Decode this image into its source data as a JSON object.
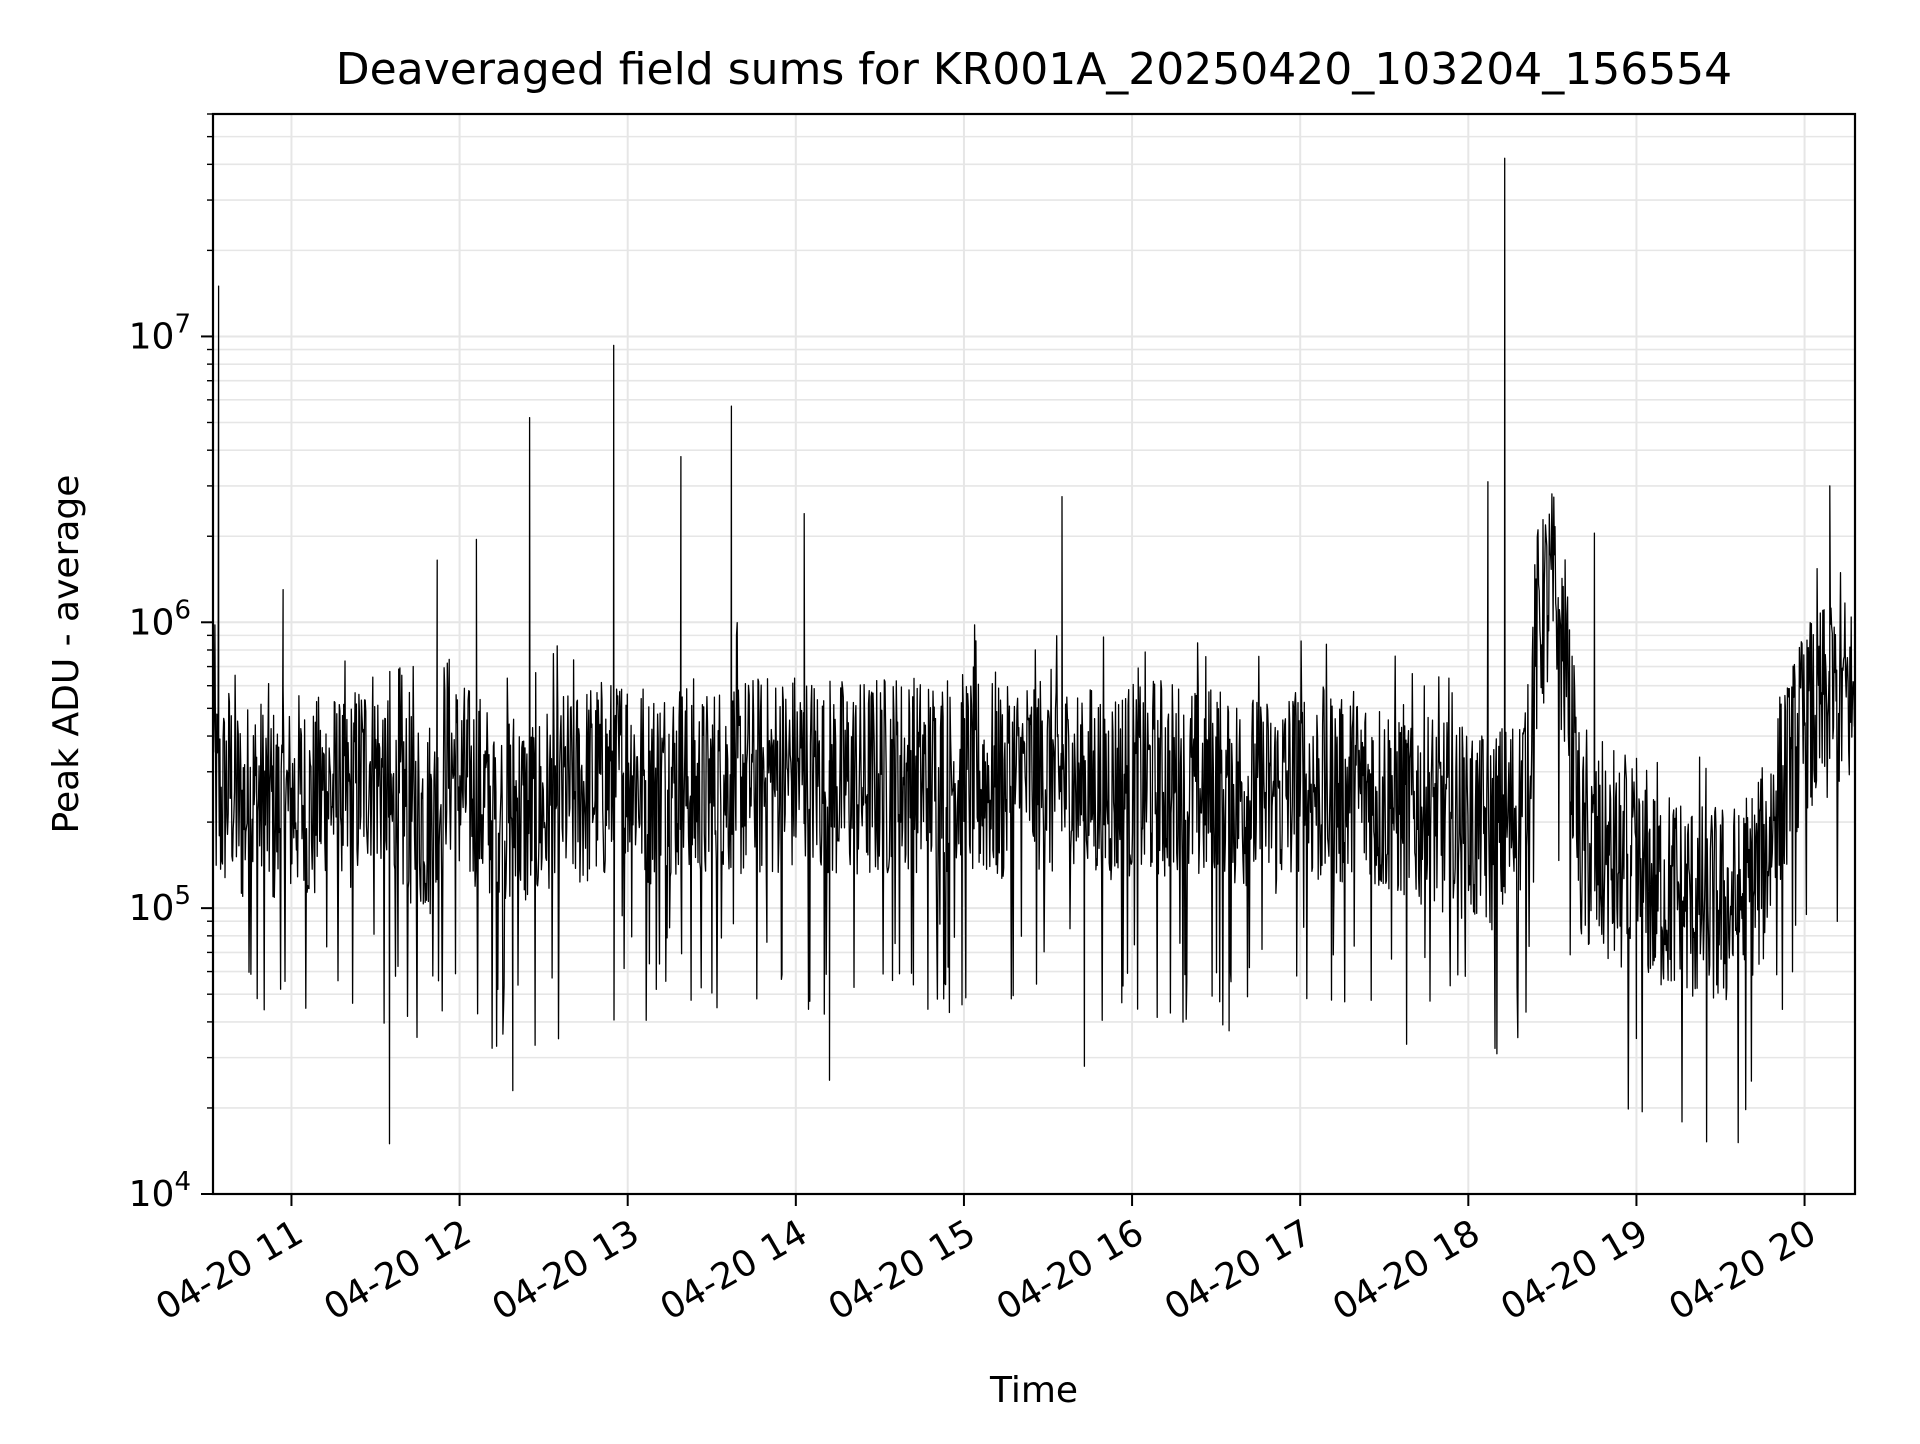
{
  "chart_data": {
    "type": "line",
    "title": "Deaveraged field sums for KR001A_20250420_103204_156554",
    "xlabel": "Time",
    "ylabel": "Peak ADU - average",
    "x_scale": "time",
    "y_scale": "log",
    "xlim": [
      "2025-04-20T10:32:00",
      "2025-04-20T20:18:00"
    ],
    "ylim": [
      10000,
      60000000
    ],
    "x_ticks": [
      {
        "t": "2025-04-20T11:00:00",
        "label": "04-20 11"
      },
      {
        "t": "2025-04-20T12:00:00",
        "label": "04-20 12"
      },
      {
        "t": "2025-04-20T13:00:00",
        "label": "04-20 13"
      },
      {
        "t": "2025-04-20T14:00:00",
        "label": "04-20 14"
      },
      {
        "t": "2025-04-20T15:00:00",
        "label": "04-20 15"
      },
      {
        "t": "2025-04-20T16:00:00",
        "label": "04-20 16"
      },
      {
        "t": "2025-04-20T17:00:00",
        "label": "04-20 17"
      },
      {
        "t": "2025-04-20T18:00:00",
        "label": "04-20 18"
      },
      {
        "t": "2025-04-20T19:00:00",
        "label": "04-20 19"
      },
      {
        "t": "2025-04-20T20:00:00",
        "label": "04-20 20"
      }
    ],
    "y_ticks": [
      {
        "value": 10000,
        "base": "10",
        "exp": "4"
      },
      {
        "value": 100000,
        "base": "10",
        "exp": "5"
      },
      {
        "value": 1000000,
        "base": "10",
        "exp": "6"
      },
      {
        "value": 10000000,
        "base": "10",
        "exp": "7"
      }
    ],
    "grid": true,
    "line_color": "#000000",
    "grid_color": "#e6e6e6",
    "series": [
      {
        "x": [
          "2025-04-20T10:32:00",
          "2025-04-20T10:33:00",
          "2025-04-20T10:35:00",
          "2025-04-20T10:38:00",
          "2025-04-20T10:42:00",
          "2025-04-20T10:47:00",
          "2025-04-20T10:52:00",
          "2025-04-20T10:57:00",
          "2025-04-20T11:02:00",
          "2025-04-20T11:07:00",
          "2025-04-20T11:13:00",
          "2025-04-20T11:20:00",
          "2025-04-20T11:28:00",
          "2025-04-20T11:34:00",
          "2025-04-20T11:36:00",
          "2025-04-20T11:40:00",
          "2025-04-20T11:45:00",
          "2025-04-20T11:52:00",
          "2025-04-20T11:55:00",
          "2025-04-20T12:00:00",
          "2025-04-20T12:06:00",
          "2025-04-20T12:12:00",
          "2025-04-20T12:18:00",
          "2025-04-20T12:24:00",
          "2025-04-20T12:30:00",
          "2025-04-20T12:38:00",
          "2025-04-20T12:46:00",
          "2025-04-20T12:55:00",
          "2025-04-20T13:00:00",
          "2025-04-20T13:08:00",
          "2025-04-20T13:19:00",
          "2025-04-20T13:26:00",
          "2025-04-20T13:37:00",
          "2025-04-20T13:45:00",
          "2025-04-20T13:55:00",
          "2025-04-20T14:03:00",
          "2025-04-20T14:12:00",
          "2025-04-20T14:22:00",
          "2025-04-20T14:35:00",
          "2025-04-20T14:45:00",
          "2025-04-20T14:55:00",
          "2025-04-20T15:05:00",
          "2025-04-20T15:15:00",
          "2025-04-20T15:25:00",
          "2025-04-20T15:35:00",
          "2025-04-20T15:42:00",
          "2025-04-20T15:50:00",
          "2025-04-20T16:00:00",
          "2025-04-20T16:10:00",
          "2025-04-20T16:20:00",
          "2025-04-20T16:30:00",
          "2025-04-20T16:40:00",
          "2025-04-20T16:50:00",
          "2025-04-20T17:00:00",
          "2025-04-20T17:10:00",
          "2025-04-20T17:20:00",
          "2025-04-20T17:30:00",
          "2025-04-20T17:40:00",
          "2025-04-20T17:50:00",
          "2025-04-20T18:00:00",
          "2025-04-20T18:08:00",
          "2025-04-20T18:15:00",
          "2025-04-20T18:20:00",
          "2025-04-20T18:25:00",
          "2025-04-20T18:30:00",
          "2025-04-20T18:35:00",
          "2025-04-20T18:40:00",
          "2025-04-20T18:45:00",
          "2025-04-20T18:55:00",
          "2025-04-20T19:05:00",
          "2025-04-20T19:15:00",
          "2025-04-20T19:25:00",
          "2025-04-20T19:35:00",
          "2025-04-20T19:42:00",
          "2025-04-20T19:46:00",
          "2025-04-20T19:50:00",
          "2025-04-20T19:55:00",
          "2025-04-20T20:00:00",
          "2025-04-20T20:05:00",
          "2025-04-20T20:10:00",
          "2025-04-20T20:15:00",
          "2025-04-20T20:18:00"
        ],
        "y": [
          600000,
          250000,
          230000,
          280000,
          220000,
          240000,
          230000,
          210000,
          250000,
          220000,
          260000,
          230000,
          330000,
          270000,
          200000,
          230000,
          220000,
          200000,
          360000,
          270000,
          250000,
          220000,
          230000,
          210000,
          220000,
          250000,
          270000,
          280000,
          310000,
          260000,
          280000,
          240000,
          290000,
          280000,
          290000,
          300000,
          280000,
          270000,
          290000,
          280000,
          290000,
          280000,
          270000,
          290000,
          280000,
          260000,
          270000,
          270000,
          280000,
          260000,
          270000,
          250000,
          240000,
          280000,
          250000,
          260000,
          240000,
          230000,
          210000,
          190000,
          180000,
          200000,
          260000,
          1000000,
          1300000,
          700000,
          160000,
          150000,
          130000,
          120000,
          110000,
          100000,
          100000,
          120000,
          150000,
          230000,
          300000,
          420000,
          480000,
          520000,
          560000,
          500000
        ],
        "spikes": [
          {
            "t": "2025-04-20T10:34:00",
            "y": 15000000
          },
          {
            "t": "2025-04-20T10:57:00",
            "y": 1300000
          },
          {
            "t": "2025-04-20T11:35:00",
            "y": 15000
          },
          {
            "t": "2025-04-20T11:52:00",
            "y": 1650000
          },
          {
            "t": "2025-04-20T12:06:00",
            "y": 1950000
          },
          {
            "t": "2025-04-20T12:19:00",
            "y": 23000
          },
          {
            "t": "2025-04-20T12:25:00",
            "y": 5200000
          },
          {
            "t": "2025-04-20T12:55:00",
            "y": 9300000
          },
          {
            "t": "2025-04-20T13:19:00",
            "y": 3800000
          },
          {
            "t": "2025-04-20T13:37:00",
            "y": 5700000
          },
          {
            "t": "2025-04-20T14:03:00",
            "y": 2400000
          },
          {
            "t": "2025-04-20T14:12:00",
            "y": 25000
          },
          {
            "t": "2025-04-20T15:35:00",
            "y": 2750000
          },
          {
            "t": "2025-04-20T15:43:00",
            "y": 28000
          },
          {
            "t": "2025-04-20T18:07:00",
            "y": 3100000
          },
          {
            "t": "2025-04-20T18:13:00",
            "y": 42000000
          },
          {
            "t": "2025-04-20T18:45:00",
            "y": 2050000
          },
          {
            "t": "2025-04-20T19:00:00",
            "y": 35000
          },
          {
            "t": "2025-04-20T20:09:00",
            "y": 3000000
          }
        ]
      }
    ]
  }
}
